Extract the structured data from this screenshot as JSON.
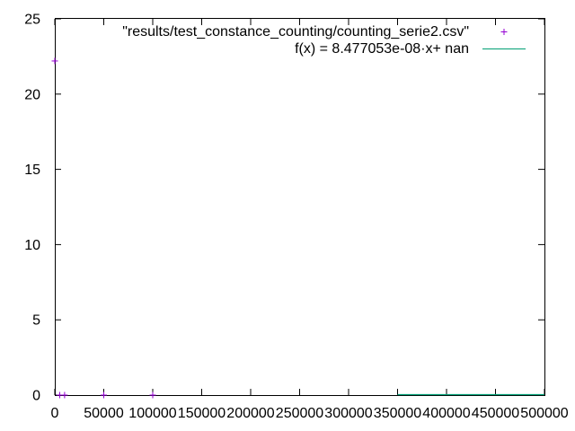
{
  "chart_data": {
    "type": "scatter",
    "xlim": [
      0,
      500000
    ],
    "ylim": [
      0,
      25
    ],
    "x_ticks": [
      0,
      50000,
      100000,
      150000,
      200000,
      250000,
      300000,
      350000,
      400000,
      450000,
      500000
    ],
    "x_tick_labels": [
      "0",
      "50000",
      "100000",
      "150000",
      "200000",
      "250000",
      "300000",
      "350000",
      "400000",
      "450000",
      "500000"
    ],
    "y_ticks": [
      0,
      5,
      10,
      15,
      20,
      25
    ],
    "y_tick_labels": [
      "0",
      "5",
      "10",
      "15",
      "20",
      "25"
    ],
    "grid": false,
    "legend_position": "top-right",
    "series": [
      {
        "name": "\"results/test_constance_counting/counting_serie2.csv\"",
        "type": "scatter",
        "marker": "+",
        "color": "#9400d3",
        "x": [
          0,
          5000,
          10000,
          50000,
          100000
        ],
        "y": [
          22.2,
          0,
          0,
          0,
          0
        ]
      },
      {
        "name": "f(x) = 8.477053e-08·x+ nan",
        "type": "line",
        "color": "#009e73",
        "x": [
          350000,
          500000
        ],
        "y": [
          0,
          0
        ]
      }
    ]
  }
}
